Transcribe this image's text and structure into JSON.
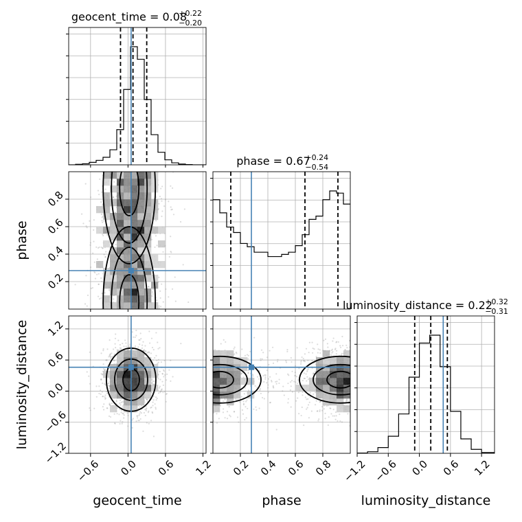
{
  "chart_data": {
    "type": "corner",
    "parameters": [
      "geocent_time",
      "phase",
      "luminosity_distance"
    ],
    "axis_labels": {
      "geocent_time": "geocent_time",
      "phase": "phase",
      "luminosity_distance": "luminosity_distance"
    },
    "ranges": {
      "geocent_time": [
        -0.95,
        1.25
      ],
      "phase": [
        0.0,
        1.0
      ],
      "luminosity_distance": [
        -1.2,
        1.45
      ]
    },
    "ticks": {
      "geocent_time": {
        "values": [
          -0.6,
          0.0,
          0.6,
          1.2
        ],
        "labels": [
          "−0.6",
          "0.0",
          "0.6",
          "1.2"
        ]
      },
      "phase": {
        "values": [
          0.2,
          0.4,
          0.6,
          0.8
        ],
        "labels": [
          "0.2",
          "0.4",
          "0.6",
          "0.8"
        ]
      },
      "luminosity_distance": {
        "values": [
          -1.2,
          -0.6,
          0.0,
          0.6,
          1.2
        ],
        "labels": [
          "−1.2",
          "−0.6",
          "0.0",
          "0.6",
          "1.2"
        ]
      }
    },
    "titles": [
      {
        "parameter": "geocent_time",
        "prefix": "geocent_time = 0.08",
        "sup": "+0.22",
        "sub": "−0.20"
      },
      {
        "parameter": "phase",
        "prefix": "phase = 0.67",
        "sup": "+0.24",
        "sub": "−0.54"
      },
      {
        "parameter": "luminosity_distance",
        "prefix": "luminosity_distance = 0.22",
        "sup": "+0.32",
        "sub": "−0.31"
      }
    ],
    "quantiles": {
      "geocent_time": [
        -0.12,
        0.08,
        0.3
      ],
      "phase": [
        0.13,
        0.67,
        0.91
      ],
      "luminosity_distance": [
        -0.09,
        0.22,
        0.54
      ]
    },
    "truths": {
      "geocent_time": 0.05,
      "phase": 0.28,
      "luminosity_distance": 0.46
    },
    "histograms": {
      "geocent_time": {
        "edges": [
          -0.95,
          -0.84,
          -0.73,
          -0.62,
          -0.51,
          -0.4,
          -0.29,
          -0.18,
          -0.07,
          0.04,
          0.15,
          0.26,
          0.37,
          0.48,
          0.59,
          0.7,
          0.81,
          0.92,
          1.03,
          1.14,
          1.25
        ],
        "counts": [
          0,
          2,
          4,
          10,
          18,
          30,
          60,
          140,
          300,
          470,
          420,
          260,
          120,
          50,
          20,
          8,
          3,
          1,
          0,
          0
        ]
      },
      "phase": {
        "edges": [
          0.0,
          0.05,
          0.1,
          0.15,
          0.2,
          0.25,
          0.3,
          0.35,
          0.4,
          0.45,
          0.5,
          0.55,
          0.6,
          0.65,
          0.7,
          0.75,
          0.8,
          0.85,
          0.9,
          0.95,
          1.0
        ],
        "counts": [
          100,
          88,
          75,
          70,
          60,
          57,
          52,
          52,
          48,
          48,
          50,
          52,
          58,
          68,
          82,
          85,
          100,
          108,
          106,
          96
        ]
      },
      "luminosity_distance": {
        "edges": [
          -1.2,
          -1.0,
          -0.8,
          -0.6,
          -0.4,
          -0.2,
          0.0,
          0.2,
          0.4,
          0.6,
          0.8,
          1.0,
          1.2,
          1.45
        ],
        "counts": [
          1,
          6,
          22,
          65,
          150,
          290,
          420,
          450,
          330,
          160,
          55,
          15,
          3
        ]
      }
    },
    "density_2d": [
      {
        "x": "geocent_time",
        "y": "phase",
        "peaks": [
          [
            0.02,
            0.88
          ],
          [
            0.02,
            0.05
          ]
        ],
        "center": [
          0.05,
          0.5
        ],
        "contours": 3
      },
      {
        "x": "geocent_time",
        "y": "luminosity_distance",
        "peaks": [
          [
            0.05,
            0.22
          ]
        ],
        "center": [
          0.05,
          0.22
        ],
        "contours": 3
      },
      {
        "x": "phase",
        "y": "luminosity_distance",
        "peaks": [
          [
            0.93,
            0.22
          ],
          [
            0.05,
            0.22
          ]
        ],
        "center": [
          0.5,
          0.22
        ],
        "contours": 3
      }
    ],
    "grid": true,
    "colors": {
      "truth": "#4682b4",
      "hist": "#000000",
      "quantile": "#000000",
      "grid": "#b0b0b0"
    }
  }
}
